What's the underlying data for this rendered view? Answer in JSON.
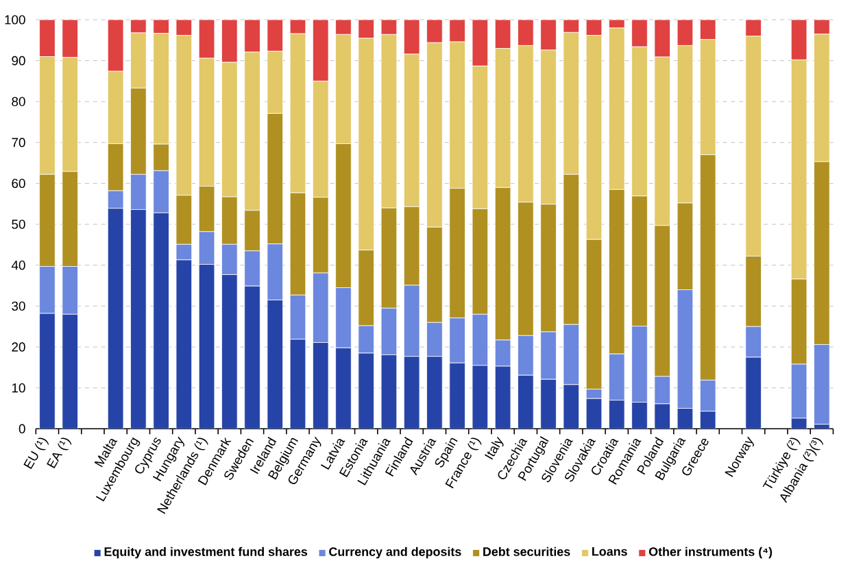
{
  "chart_data": {
    "type": "bar",
    "stacked": true,
    "categories": [
      "EU (¹)",
      "EA (¹)",
      null,
      "Malta",
      "Luxembourg",
      "Cyprus",
      "Hungary",
      "Netherlands (¹)",
      "Denmark",
      "Sweden",
      "Ireland",
      "Belgium",
      "Germany",
      "Latvia",
      "Estonia",
      "Lithuania",
      "Finland",
      "Austria",
      "Spain",
      "France (¹)",
      "Italy",
      "Czechia",
      "Portugal",
      "Slovenia",
      "Slovakia",
      "Croatia",
      "Romania",
      "Poland",
      "Bulgaria",
      "Greece",
      null,
      "Norway",
      null,
      "Türkiye (²)",
      "Albania (²)(³)"
    ],
    "series": [
      {
        "name": "Equity and investment fund shares",
        "color": "#2644a8",
        "values": [
          28.2,
          28.0,
          null,
          53.9,
          53.6,
          52.8,
          41.3,
          40.2,
          37.7,
          34.9,
          31.5,
          21.9,
          21.1,
          19.8,
          18.5,
          18.1,
          17.7,
          17.7,
          16.1,
          15.5,
          15.3,
          13.1,
          12.1,
          10.8,
          7.4,
          7.0,
          6.5,
          6.1,
          5.0,
          4.3,
          null,
          17.5,
          null,
          2.6,
          1.1
        ]
      },
      {
        "name": "Currency and deposits",
        "color": "#6b87de",
        "values": [
          11.5,
          11.7,
          null,
          4.3,
          8.6,
          10.3,
          3.8,
          8.0,
          7.4,
          8.6,
          13.7,
          10.8,
          17.0,
          14.7,
          6.7,
          11.4,
          17.4,
          8.3,
          11.0,
          12.5,
          6.4,
          9.7,
          11.6,
          14.7,
          2.3,
          11.3,
          18.6,
          6.7,
          29.0,
          7.6,
          null,
          7.5,
          null,
          13.2,
          19.5
        ]
      },
      {
        "name": "Debt securities",
        "color": "#b09020",
        "values": [
          22.5,
          23.2,
          null,
          11.5,
          21.1,
          6.5,
          12.0,
          11.1,
          11.6,
          9.9,
          31.9,
          25.0,
          18.5,
          35.2,
          18.5,
          24.5,
          19.2,
          23.3,
          31.7,
          25.8,
          37.3,
          32.6,
          31.2,
          36.7,
          36.6,
          40.2,
          31.8,
          36.9,
          21.2,
          55.1,
          null,
          17.2,
          null,
          20.8,
          44.7
        ]
      },
      {
        "name": "Loans",
        "color": "#e2c866",
        "values": [
          28.8,
          27.9,
          null,
          17.7,
          13.5,
          27.1,
          39.1,
          31.3,
          32.9,
          38.7,
          15.2,
          38.9,
          28.4,
          26.7,
          51.8,
          42.4,
          37.3,
          45.1,
          35.8,
          34.9,
          34.0,
          38.3,
          37.7,
          34.7,
          49.9,
          39.5,
          36.5,
          41.2,
          38.5,
          28.2,
          null,
          53.8,
          null,
          53.6,
          31.2
        ]
      },
      {
        "name": "Other instruments (⁴)",
        "color": "#e04141",
        "values": [
          9.0,
          9.2,
          null,
          12.6,
          3.2,
          3.3,
          3.8,
          9.4,
          10.4,
          7.9,
          7.7,
          3.4,
          15.0,
          3.6,
          4.5,
          3.6,
          8.4,
          5.6,
          5.4,
          11.3,
          7.0,
          6.3,
          7.4,
          3.1,
          3.8,
          2.0,
          6.6,
          9.1,
          6.3,
          4.8,
          null,
          4.0,
          null,
          9.8,
          3.5
        ]
      }
    ],
    "ylim": [
      0,
      100
    ],
    "yticks": [
      0,
      10,
      20,
      30,
      40,
      50,
      60,
      70,
      80,
      90,
      100
    ],
    "grid": "y",
    "legend": "bottom"
  }
}
